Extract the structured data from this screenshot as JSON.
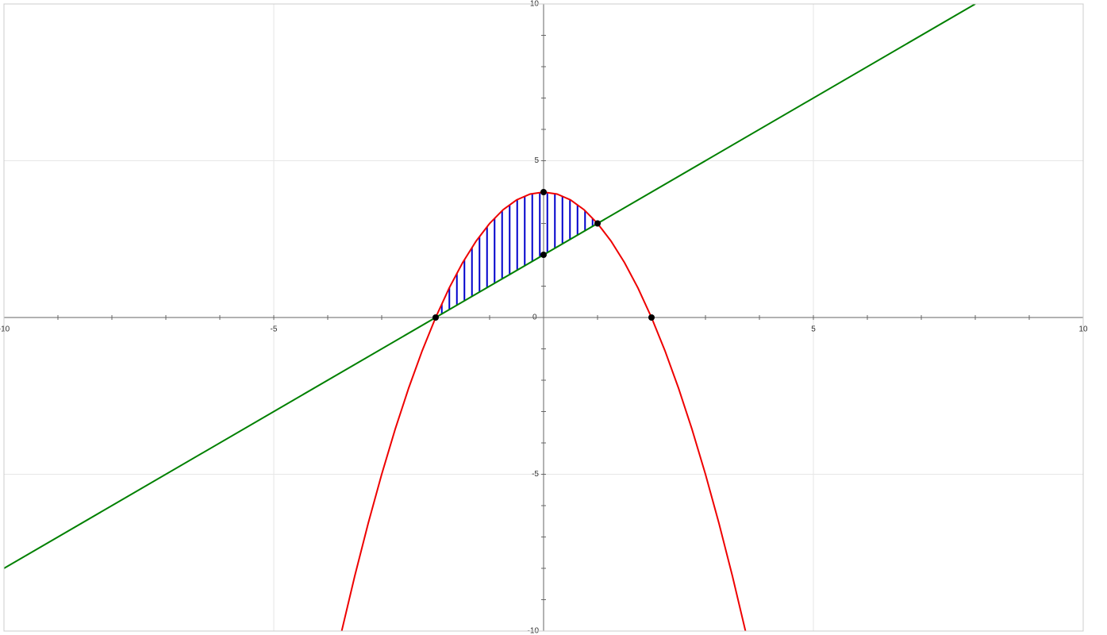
{
  "chart_data": {
    "type": "function-plot",
    "xlim": [
      -10,
      10
    ],
    "ylim": [
      -10,
      10
    ],
    "xticks": [
      -10,
      -5,
      0,
      5,
      10
    ],
    "yticks": [
      -10,
      -5,
      5,
      10
    ],
    "minor_tick_step": 1,
    "grid": true,
    "series": [
      {
        "color": "#ee0000",
        "x": [
          -3.75,
          -3.5,
          -3.25,
          -3,
          -2.75,
          -2.5,
          -2.25,
          -2,
          -1.75,
          -1.5,
          -1.25,
          -1,
          -0.75,
          -0.5,
          -0.25,
          0,
          0.25,
          0.5,
          0.75,
          1,
          1.25,
          1.5,
          1.75,
          2,
          2.25,
          2.5,
          2.75,
          3,
          3.25,
          3.5,
          3.75
        ],
        "values": [
          -10.0625,
          -8.25,
          -6.5625,
          -5,
          -3.5625,
          -2.25,
          -1.0625,
          0,
          0.9375,
          1.75,
          2.4375,
          3,
          3.4375,
          3.75,
          3.9375,
          4,
          3.9375,
          3.75,
          3.4375,
          3,
          2.4375,
          1.75,
          0.9375,
          0,
          -1.0625,
          -2.25,
          -3.5625,
          -5,
          -6.5625,
          -8.25,
          -10.0625
        ]
      },
      {
        "color": "#008000",
        "x": [
          -10,
          8
        ],
        "values": [
          -8,
          10
        ]
      }
    ],
    "region": {
      "color": "#0000cc",
      "x": [
        -2,
        -1.75,
        -1.5,
        -1.25,
        -1,
        -0.75,
        -0.5,
        -0.25,
        0,
        0.25,
        0.5,
        0.75,
        1
      ],
      "upper": [
        0,
        0.9375,
        1.75,
        2.4375,
        3,
        3.4375,
        3.75,
        3.9375,
        4,
        3.9375,
        3.75,
        3.4375,
        3
      ],
      "lower": [
        0,
        0.25,
        0.5,
        0.75,
        1,
        1.25,
        1.5,
        1.75,
        2,
        2.25,
        2.5,
        2.75,
        3
      ]
    },
    "points": {
      "color": "#000000",
      "x": [
        -2,
        0,
        0,
        1,
        2
      ],
      "values": [
        0,
        4,
        2,
        3,
        0
      ]
    }
  }
}
